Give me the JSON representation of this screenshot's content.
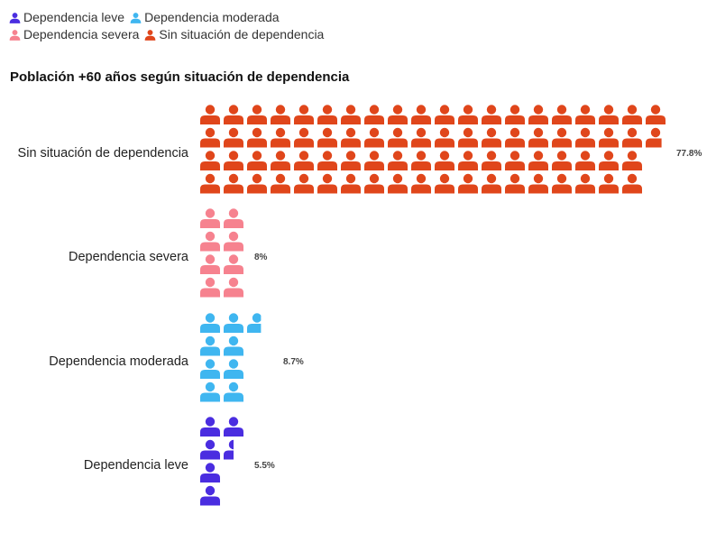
{
  "colors": {
    "Dependencia leve": "#4a2de0",
    "Dependencia moderada": "#3fb6f0",
    "Dependencia severa": "#f6828f",
    "Sin situación de dependencia": "#e0461b"
  },
  "legend": {
    "items": [
      "Dependencia leve",
      "Dependencia moderada",
      "Dependencia severa",
      "Sin situación de dependencia"
    ]
  },
  "chart_data": {
    "type": "bar",
    "title": "Población +60 años según situación de dependencia",
    "icon": "person-icon",
    "categories": [
      "Sin situación de dependencia",
      "Dependencia severa",
      "Dependencia moderada",
      "Dependencia leve"
    ],
    "values": [
      77.8,
      8,
      8.7,
      5.5
    ],
    "value_labels": [
      "77.8%",
      "8%",
      "8.7%",
      "5.5%"
    ],
    "xlabel": "",
    "ylabel": ""
  }
}
